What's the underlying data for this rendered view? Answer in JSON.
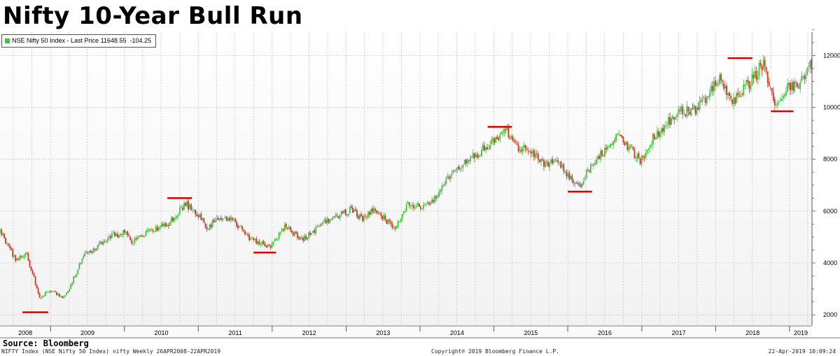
{
  "colors": {
    "up": "#3cc43c",
    "down": "#c0392b",
    "marker": "#d40000",
    "grid": "#c8c8c8",
    "plot_bg_top": "#ffffff",
    "plot_bg_bottom": "#f2f2f2"
  },
  "chart_data": {
    "type": "candlestick",
    "title": "Nifty 10-Year Bull Run",
    "legend": {
      "series_name": "NSE Nifty 50 Index - Last Price",
      "last_price": "11648.55",
      "change": "-104.25",
      "placement": "top-left"
    },
    "ylim": [
      1600,
      12900
    ],
    "yticks": [
      2000,
      4000,
      6000,
      8000,
      10000,
      12000
    ],
    "ytick_labels": [
      "2000",
      "4000",
      "6000",
      "8000",
      "10000",
      "12000"
    ],
    "xlim": [
      "2008-04-26",
      "2019-04-22"
    ],
    "xaxis_years": [
      "2008",
      "2009",
      "2010",
      "2011",
      "2012",
      "2013",
      "2014",
      "2015",
      "2016",
      "2017",
      "2018",
      "2019"
    ],
    "grid": true,
    "frequency": "weekly",
    "price_path": [
      {
        "date": "2008-04-26",
        "price": 5250
      },
      {
        "date": "2008-06-01",
        "price": 4700
      },
      {
        "date": "2008-07-15",
        "price": 4100
      },
      {
        "date": "2008-09-01",
        "price": 4400
      },
      {
        "date": "2008-10-15",
        "price": 3300
      },
      {
        "date": "2008-11-10",
        "price": 2600
      },
      {
        "date": "2008-12-15",
        "price": 2900
      },
      {
        "date": "2009-02-01",
        "price": 2800
      },
      {
        "date": "2009-03-10",
        "price": 2650
      },
      {
        "date": "2009-05-01",
        "price": 3500
      },
      {
        "date": "2009-06-15",
        "price": 4400
      },
      {
        "date": "2009-08-01",
        "price": 4500
      },
      {
        "date": "2009-10-15",
        "price": 5000
      },
      {
        "date": "2010-01-05",
        "price": 5200
      },
      {
        "date": "2010-02-10",
        "price": 4800
      },
      {
        "date": "2010-05-01",
        "price": 5200
      },
      {
        "date": "2010-08-01",
        "price": 5500
      },
      {
        "date": "2010-11-01",
        "price": 6300
      },
      {
        "date": "2011-01-15",
        "price": 5700
      },
      {
        "date": "2011-02-15",
        "price": 5300
      },
      {
        "date": "2011-04-15",
        "price": 5800
      },
      {
        "date": "2011-07-01",
        "price": 5600
      },
      {
        "date": "2011-09-01",
        "price": 5000
      },
      {
        "date": "2011-12-20",
        "price": 4600
      },
      {
        "date": "2012-03-01",
        "price": 5400
      },
      {
        "date": "2012-06-01",
        "price": 4900
      },
      {
        "date": "2012-09-15",
        "price": 5600
      },
      {
        "date": "2012-12-15",
        "price": 5900
      },
      {
        "date": "2013-01-25",
        "price": 6050
      },
      {
        "date": "2013-03-20",
        "price": 5700
      },
      {
        "date": "2013-05-20",
        "price": 6100
      },
      {
        "date": "2013-08-28",
        "price": 5300
      },
      {
        "date": "2013-11-01",
        "price": 6250
      },
      {
        "date": "2014-01-20",
        "price": 6200
      },
      {
        "date": "2014-03-10",
        "price": 6500
      },
      {
        "date": "2014-05-20",
        "price": 7300
      },
      {
        "date": "2014-09-01",
        "price": 8000
      },
      {
        "date": "2014-11-25",
        "price": 8500
      },
      {
        "date": "2015-03-04",
        "price": 9100
      },
      {
        "date": "2015-05-01",
        "price": 8300
      },
      {
        "date": "2015-06-15",
        "price": 8500
      },
      {
        "date": "2015-09-01",
        "price": 7800
      },
      {
        "date": "2015-11-01",
        "price": 7950
      },
      {
        "date": "2016-02-20",
        "price": 6900
      },
      {
        "date": "2016-05-01",
        "price": 7800
      },
      {
        "date": "2016-09-10",
        "price": 8900
      },
      {
        "date": "2016-12-25",
        "price": 7950
      },
      {
        "date": "2017-03-01",
        "price": 8900
      },
      {
        "date": "2017-07-01",
        "price": 9800
      },
      {
        "date": "2017-10-01",
        "price": 10000
      },
      {
        "date": "2018-01-25",
        "price": 11100
      },
      {
        "date": "2018-03-20",
        "price": 10100
      },
      {
        "date": "2018-05-20",
        "price": 10700
      },
      {
        "date": "2018-08-28",
        "price": 11700
      },
      {
        "date": "2018-10-25",
        "price": 10100
      },
      {
        "date": "2018-12-20",
        "price": 10800
      },
      {
        "date": "2019-02-15",
        "price": 10750
      },
      {
        "date": "2019-04-10",
        "price": 11700
      },
      {
        "date": "2019-04-22",
        "price": 11650
      }
    ],
    "annotations": [
      {
        "type": "peak",
        "start": "2008-08-15",
        "end": "2008-12-20",
        "value": 2100
      },
      {
        "type": "peak",
        "start": "2010-08-01",
        "end": "2010-11-30",
        "value": 6500
      },
      {
        "type": "trough",
        "start": "2011-10-01",
        "end": "2012-01-20",
        "value": 4400
      },
      {
        "type": "peak",
        "start": "2014-12-01",
        "end": "2015-03-31",
        "value": 9250
      },
      {
        "type": "trough",
        "start": "2016-01-01",
        "end": "2016-04-30",
        "value": 6750
      },
      {
        "type": "peak",
        "start": "2018-03-01",
        "end": "2018-07-01",
        "value": 11900
      },
      {
        "type": "trough",
        "start": "2018-10-01",
        "end": "2019-01-20",
        "value": 9850
      }
    ]
  },
  "source_label": "Source: Bloomberg",
  "footer": {
    "left": "NIFTY Index (NSE Nifty 50 Index) nifty  Weekly 26APR2008-22APR2019",
    "center": "Copyright® 2019 Bloomberg Finance L.P.",
    "right": "22-Apr-2019 10:09:24"
  }
}
